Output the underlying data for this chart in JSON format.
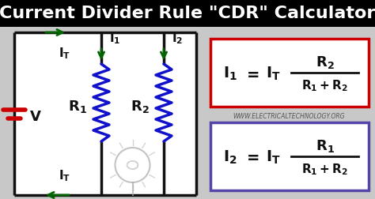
{
  "title": "Current Divider Rule \"CDR\" Calculator",
  "title_fontsize": 16,
  "title_bg": "#000000",
  "title_color": "#ffffff",
  "bg_color": "#c8c8c8",
  "circuit_bg": "#ffffff",
  "website": "WWW.ELECTRICALTECHNOLOGY.ORG",
  "formula1_box_color": "#cc0000",
  "formula2_box_color": "#5544aa",
  "wire_color": "#111111",
  "resistor_color": "#1111cc",
  "current_arrow_color": "#006600",
  "battery_color": "#cc0000"
}
